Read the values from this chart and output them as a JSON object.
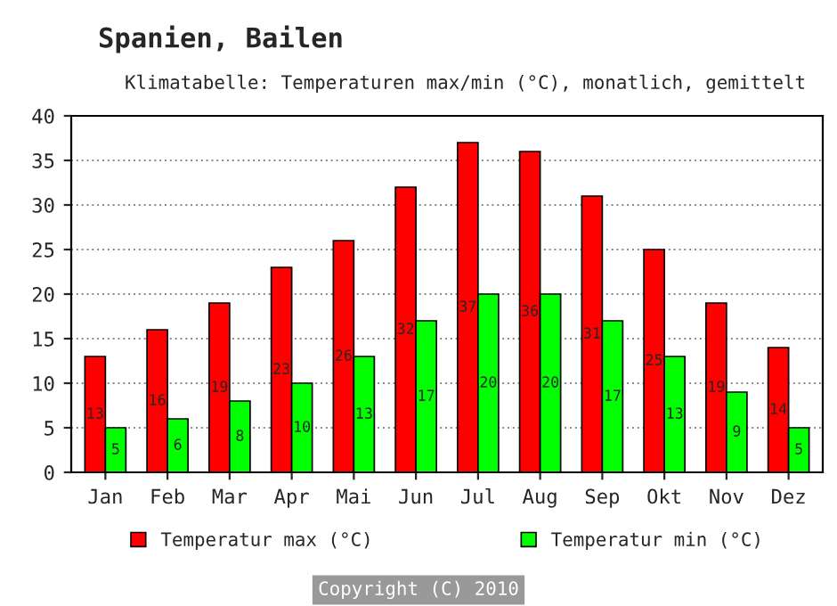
{
  "chart_data": {
    "type": "bar",
    "title": "Spanien, Bailen",
    "subtitle": "Klimatabelle: Temperaturen max/min (°C), monatlich, gemittelt",
    "categories": [
      "Jan",
      "Feb",
      "Mar",
      "Apr",
      "Mai",
      "Jun",
      "Jul",
      "Aug",
      "Sep",
      "Okt",
      "Nov",
      "Dez"
    ],
    "series": [
      {
        "name": "Temperatur max (°C)",
        "color": "#ff0000",
        "values": [
          13,
          16,
          19,
          23,
          26,
          32,
          37,
          36,
          31,
          25,
          19,
          14
        ]
      },
      {
        "name": "Temperatur min (°C)",
        "color": "#00ff00",
        "values": [
          5,
          6,
          8,
          10,
          13,
          17,
          20,
          20,
          17,
          13,
          9,
          5
        ]
      }
    ],
    "data_labels": true,
    "ylim": [
      0,
      40
    ],
    "yticks": [
      0,
      5,
      10,
      15,
      20,
      25,
      30,
      35,
      40
    ],
    "grid": "y",
    "legend": "bottom",
    "annotations": [
      "Copyright (C) 2010"
    ]
  }
}
